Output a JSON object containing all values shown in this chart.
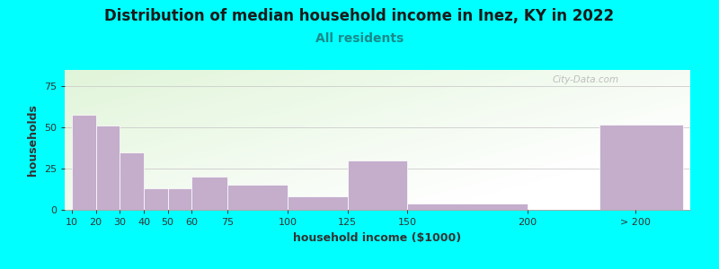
{
  "title": "Distribution of median household income in Inez, KY in 2022",
  "subtitle": "All residents",
  "xlabel": "household income ($1000)",
  "ylabel": "households",
  "background_color": "#00FFFF",
  "bar_color": "#C4AECC",
  "values": [
    58,
    51,
    35,
    13,
    13,
    20,
    15,
    8,
    30,
    4,
    0,
    52
  ],
  "title_fontsize": 12,
  "subtitle_fontsize": 10,
  "axis_label_fontsize": 9,
  "tick_fontsize": 8,
  "ylim": [
    0,
    85
  ],
  "yticks": [
    0,
    25,
    50,
    75
  ],
  "watermark": "City-Data.com",
  "title_color": "#1a1a1a",
  "subtitle_color": "#1a8a8a",
  "label_color": "#333333"
}
